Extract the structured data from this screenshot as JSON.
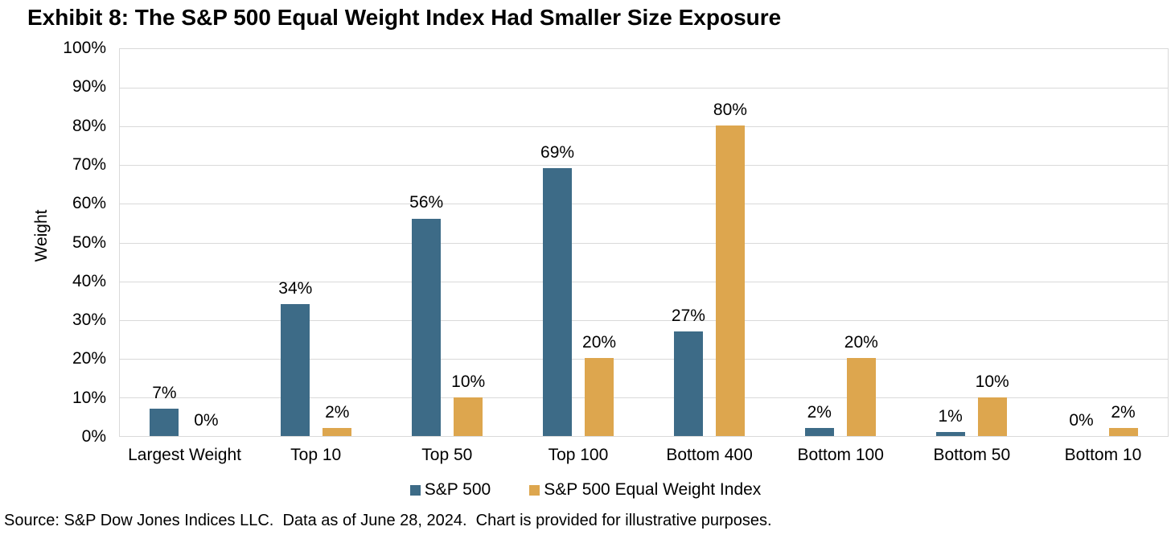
{
  "title": "Exhibit 8: The S&P 500 Equal Weight Index Had Smaller Size Exposure",
  "source": "Source: S&P Dow Jones Indices LLC.  Data as of June 28, 2024.  Chart is provided for illustrative purposes.",
  "colors": {
    "sp500_blue": "#3D6B87",
    "equal_weight_gold": "#DDA64E",
    "gridline": "#D9D9D9",
    "text": "#000000",
    "background": "#FFFFFF"
  },
  "chart_data": {
    "type": "bar",
    "title": "Exhibit 8: The S&P 500 Equal Weight Index Had Smaller Size Exposure",
    "xlabel": "",
    "ylabel": "Weight",
    "ylim": [
      0,
      100
    ],
    "ytick_step": 10,
    "grid": true,
    "legend_position": "bottom",
    "yticks": [
      "100%",
      "90%",
      "80%",
      "70%",
      "60%",
      "50%",
      "40%",
      "30%",
      "20%",
      "10%",
      "0%"
    ],
    "categories": [
      "Largest Weight",
      "Top 10",
      "Top 50",
      "Top 100",
      "Bottom 400",
      "Bottom 100",
      "Bottom 50",
      "Bottom 10"
    ],
    "series": [
      {
        "name": "S&P 500",
        "color": "#3D6B87",
        "values": [
          7,
          34,
          56,
          69,
          27,
          2,
          1,
          0
        ],
        "labels": [
          "7%",
          "34%",
          "56%",
          "69%",
          "27%",
          "2%",
          "1%",
          "0%"
        ]
      },
      {
        "name": "S&P 500 Equal Weight Index",
        "color": "#DDA64E",
        "values": [
          0,
          2,
          10,
          20,
          80,
          20,
          10,
          2
        ],
        "labels": [
          "0%",
          "2%",
          "10%",
          "20%",
          "80%",
          "20%",
          "10%",
          "2%"
        ]
      }
    ]
  }
}
